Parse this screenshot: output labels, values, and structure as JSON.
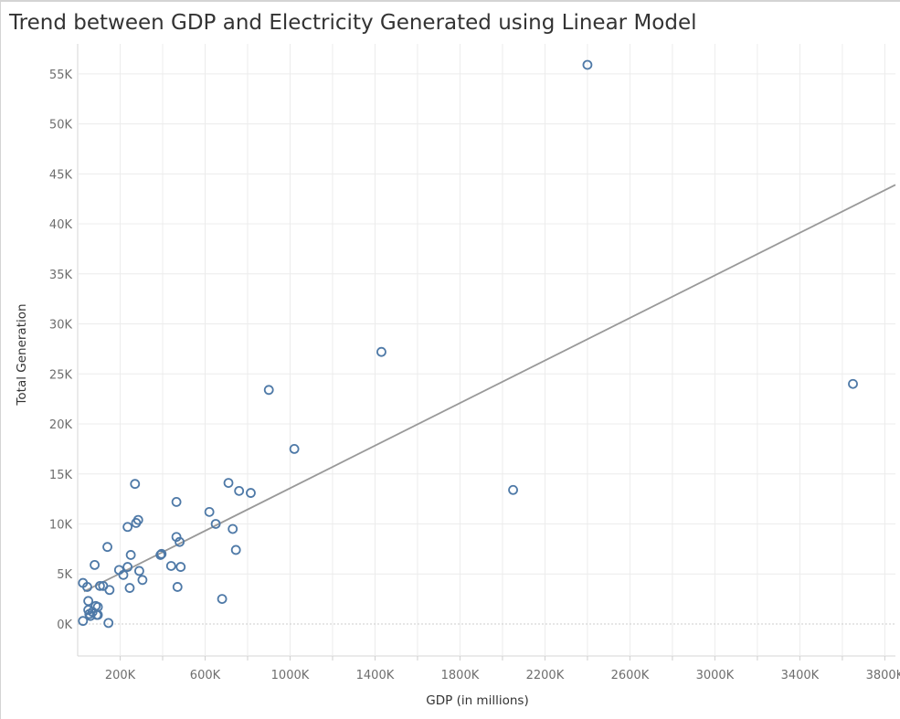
{
  "chart_data": {
    "type": "scatter",
    "title": "Trend between GDP and Electricity Generated using Linear Model",
    "xlabel": "GDP (in millions)",
    "ylabel": "Total Generation",
    "xlim": [
      0,
      3850000
    ],
    "ylim": [
      -3200,
      58000
    ],
    "x_ticks": [
      200000,
      600000,
      1000000,
      1400000,
      1800000,
      2200000,
      2600000,
      3000000,
      3400000,
      3800000
    ],
    "x_tick_labels": [
      "200K",
      "600K",
      "1000K",
      "1400K",
      "1800K",
      "2200K",
      "2600K",
      "3000K",
      "3400K",
      "3800K"
    ],
    "y_ticks": [
      0,
      5000,
      10000,
      15000,
      20000,
      25000,
      30000,
      35000,
      40000,
      45000,
      50000,
      55000
    ],
    "y_tick_labels": [
      "0K",
      "5K",
      "10K",
      "15K",
      "20K",
      "25K",
      "30K",
      "35K",
      "40K",
      "45K",
      "50K",
      "55K"
    ],
    "grid": true,
    "colors": {
      "points": "#4e79a7",
      "trend_line": "#999999",
      "grid": "#ececec",
      "zero_line": "#cccccc"
    },
    "trend_line": {
      "x": [
        30000,
        3850000
      ],
      "y": [
        3250,
        43900
      ]
    },
    "series": [
      {
        "x": [
          2400000,
          3650000,
          1430000,
          900000,
          1020000,
          2050000,
          270000,
          710000,
          760000,
          815000,
          465000,
          620000,
          285000,
          275000,
          650000,
          235000,
          730000,
          465000,
          480000,
          745000,
          120000,
          140000,
          395000,
          390000,
          250000,
          80000,
          440000,
          485000,
          235000,
          290000,
          195000,
          215000,
          305000,
          25000,
          45000,
          105000,
          245000,
          470000,
          150000,
          680000,
          50000,
          85000,
          95000,
          50000,
          55000,
          70000,
          90000,
          95000,
          60000,
          25000,
          145000
        ],
        "y": [
          55900,
          24000,
          27200,
          23400,
          17500,
          13400,
          14000,
          14100,
          13300,
          13100,
          12200,
          11200,
          10400,
          10100,
          10000,
          9700,
          9500,
          8700,
          8200,
          7400,
          3800,
          7700,
          7000,
          6900,
          6900,
          5900,
          5800,
          5700,
          5700,
          5300,
          5400,
          4900,
          4400,
          4100,
          3700,
          3800,
          3600,
          3700,
          3400,
          2500,
          2300,
          1800,
          1700,
          1400,
          1000,
          1200,
          900,
          900,
          800,
          300,
          100
        ]
      }
    ]
  }
}
